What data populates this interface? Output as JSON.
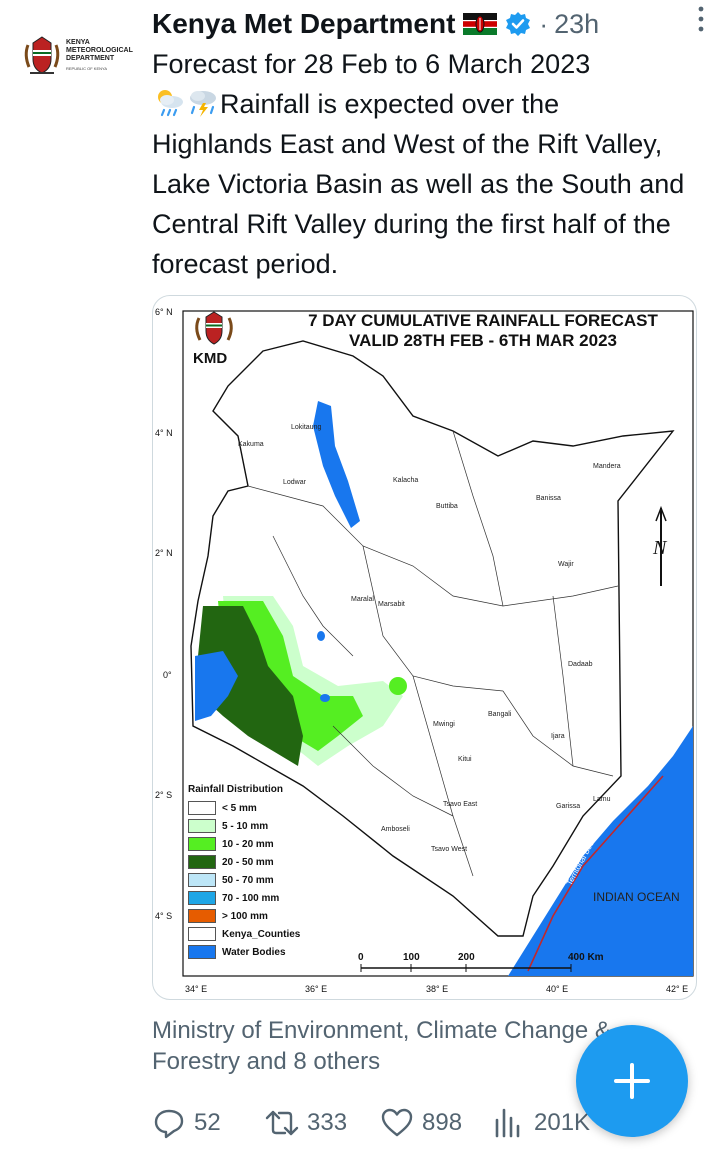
{
  "tweet": {
    "author_name": "Kenya Met Department",
    "timestamp": "23h",
    "dot_separator": "·",
    "text_line1": "Forecast for 28 Feb to 6 March 2023",
    "text_line2": "Rainfall is expected over the",
    "text_rest": "Highlands East and West of the Rift Valley, Lake Victoria Basin as well as the South and Central Rift Valley during the first half of the forecast period.",
    "emoji": [
      "sun-behind-rain-cloud-icon",
      "cloud-with-lightning-and-rain-icon"
    ],
    "avatar_text": [
      "Kenya",
      "Meteorological",
      "Department"
    ],
    "avatar_subtext": "REPUBLIC OF KENYA"
  },
  "map": {
    "title_line1": "7 DAY CUMULATIVE RAINFALL FORECAST",
    "title_line2": "VALID 28TH FEB - 6TH MAR 2023",
    "logo_text": "KMD",
    "lat_labels": [
      "6° N",
      "4° N",
      "2° N",
      "0°",
      "2° S",
      "4° S"
    ],
    "lon_labels": [
      "34° E",
      "36° E",
      "38° E",
      "40° E",
      "42° E"
    ],
    "place_labels": [
      "Lokitaung",
      "Kakuma",
      "Lodwar",
      "Kalacha",
      "Buttiba",
      "Banissa",
      "Mandera",
      "Marsabit",
      "Wajir",
      "Maralal",
      "Mwingi",
      "Bangali",
      "Dadaab",
      "Ijara",
      "Kitui",
      "Tsavo East",
      "Tsavo West",
      "Amboseli",
      "Garissa",
      "Lamu"
    ],
    "legend_title": "Rainfall Distribution",
    "legend": [
      {
        "label": "< 5 mm",
        "color": "#ffffff"
      },
      {
        "label": "5 - 10 mm",
        "color": "#ccffcc"
      },
      {
        "label": "10 - 20 mm",
        "color": "#55ee22"
      },
      {
        "label": "20 - 50 mm",
        "color": "#226611"
      },
      {
        "label": "50 - 70 mm",
        "color": "#bde6f7"
      },
      {
        "label": "70 - 100 mm",
        "color": "#1ea6e6"
      },
      {
        "label": "> 100 mm",
        "color": "#e65c00"
      },
      {
        "label": "Kenya_Counties",
        "color": "#ffffff"
      },
      {
        "label": "Water Bodies",
        "color": "#1877ee"
      }
    ],
    "ocean_label": "INDIAN OCEAN",
    "boundary_label": "Territorial Boundary",
    "scale": [
      "0",
      "100",
      "200",
      "400 Km"
    ],
    "north_label": "N"
  },
  "attribution": {
    "line1": "Ministry of Environment, Climate Change &",
    "line2": "Forestry and 8 others"
  },
  "actions": {
    "replies": "52",
    "retweets": "333",
    "likes": "898",
    "views": "201K"
  },
  "colors": {
    "accent": "#1d9bf0",
    "secondary_text": "#536471",
    "primary_text": "#0f1419"
  }
}
